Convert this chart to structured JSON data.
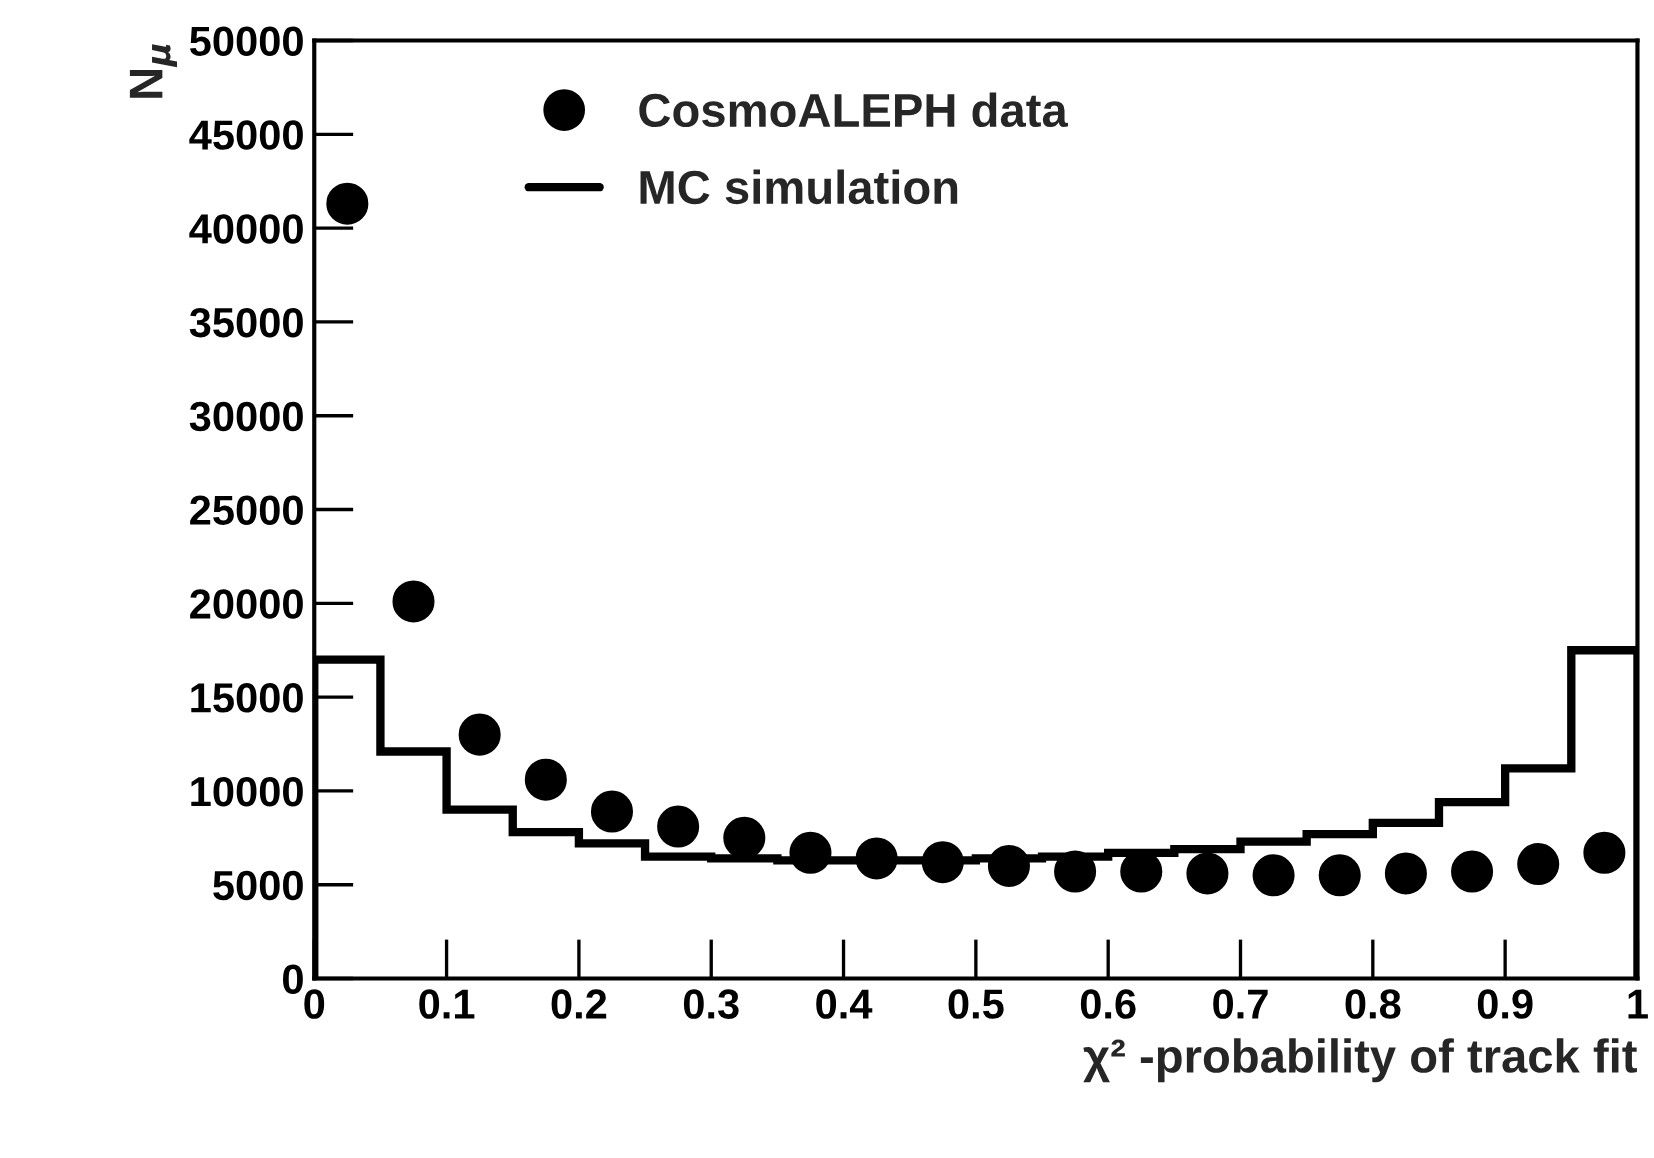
{
  "chart_data": {
    "type": "histogram",
    "xlabel": "χ² -probability of track fit",
    "ylabel": "N$_{μ}$",
    "xlim": [
      0,
      1
    ],
    "ylim": [
      0,
      50000
    ],
    "xticks": [
      0,
      0.1,
      0.2,
      0.3,
      0.4,
      0.5,
      0.6,
      0.7,
      0.8,
      0.9,
      1
    ],
    "yticks": [
      0,
      5000,
      10000,
      15000,
      20000,
      25000,
      30000,
      35000,
      40000,
      45000,
      50000
    ],
    "legend": "top left",
    "grid": false,
    "series": [
      {
        "name": "CosmoALEPH data",
        "type": "scatter",
        "marker": "circle",
        "color": "#000000",
        "x": [
          0.025,
          0.075,
          0.125,
          0.175,
          0.225,
          0.275,
          0.325,
          0.375,
          0.425,
          0.475,
          0.525,
          0.575,
          0.625,
          0.675,
          0.725,
          0.775,
          0.825,
          0.875,
          0.925,
          0.975
        ],
        "values": [
          41300,
          20100,
          13000,
          10600,
          8900,
          8100,
          7500,
          6700,
          6400,
          6200,
          6000,
          5700,
          5700,
          5600,
          5500,
          5500,
          5600,
          5700,
          6100,
          6700
        ]
      },
      {
        "name": "MC simulation",
        "color": "#000000",
        "bins": [
          0,
          0.05,
          0.1,
          0.15,
          0.2,
          0.25,
          0.3,
          0.35,
          0.4,
          0.45,
          0.5,
          0.55,
          0.6,
          0.65,
          0.7,
          0.75,
          0.8,
          0.85,
          0.9,
          0.95,
          1
        ],
        "values": [
          17000,
          12100,
          9000,
          7800,
          7200,
          6500,
          6400,
          6300,
          6300,
          6300,
          6400,
          6500,
          6700,
          6900,
          7300,
          7700,
          8300,
          9400,
          11200,
          17500
        ]
      }
    ]
  }
}
